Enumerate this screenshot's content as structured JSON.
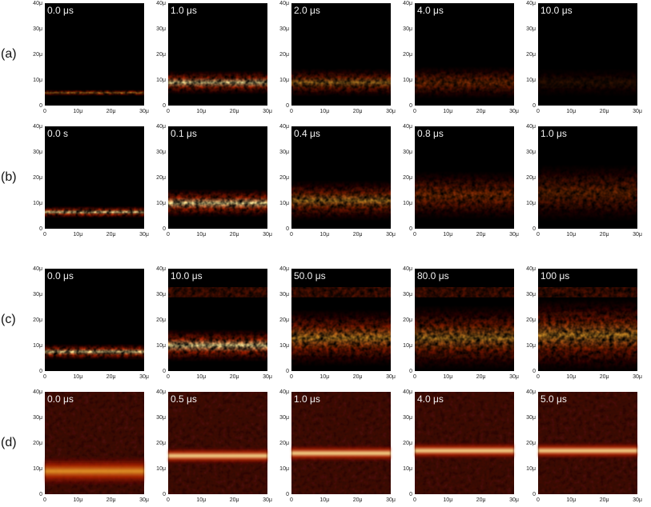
{
  "rows": [
    {
      "label": "(a)",
      "frames": [
        "0.0 μs",
        "1.0 μs",
        "2.0 μs",
        "4.0 μs",
        "10.0 μs"
      ]
    },
    {
      "label": "(b)",
      "frames": [
        "0.0 s",
        "0.1 μs",
        "0.4 μs",
        "0.8 μs",
        "1.0 μs"
      ]
    },
    {
      "label": "(c)",
      "frames": [
        "0.0 μs",
        "10.0 μs",
        "50.0 μs",
        "80.0 μs",
        "100 μs"
      ]
    },
    {
      "label": "(d)",
      "frames": [
        "0.0 μs",
        "0.5 μs",
        "1.0 μs",
        "4.0 μs",
        "5.0 μs"
      ]
    }
  ],
  "axes": {
    "y_ticks": [
      "0",
      "10μ",
      "20μ",
      "30μ",
      "40μ"
    ],
    "x_ticks": [
      "0",
      "10μ",
      "20μ",
      "30μ"
    ]
  }
}
